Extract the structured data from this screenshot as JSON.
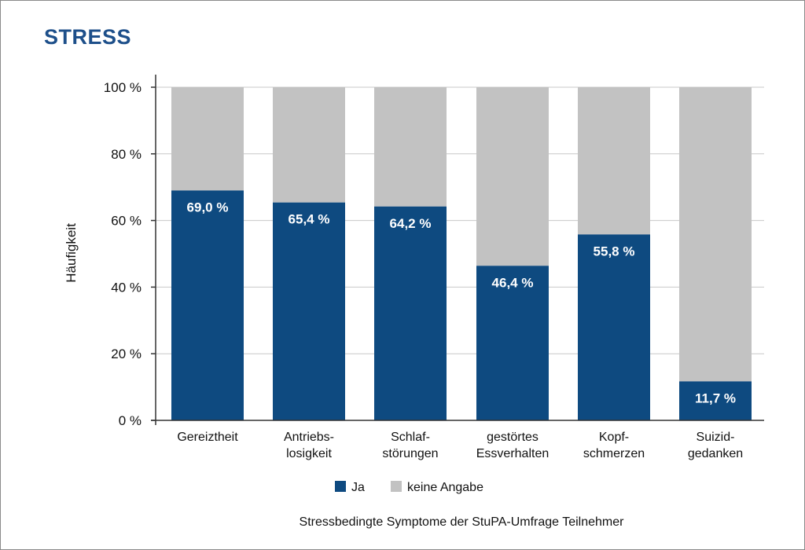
{
  "chart_data": {
    "type": "bar",
    "stacked": true,
    "title": "STRESS",
    "ylabel": "Häufigkeit",
    "ylim": [
      0,
      100
    ],
    "yticks": [
      0,
      20,
      40,
      60,
      80,
      100
    ],
    "ytick_labels": [
      "0 %",
      "20 %",
      "40 %",
      "60 %",
      "80 %",
      "100 %"
    ],
    "categories": [
      [
        "Gereiztheit"
      ],
      [
        "Antriebs-",
        "losigkeit"
      ],
      [
        "Schlaf-",
        "störungen"
      ],
      [
        "gestörtes",
        "Essverhalten"
      ],
      [
        "Kopf-",
        "schmerzen"
      ],
      [
        "Suizid-",
        "gedanken"
      ]
    ],
    "series": [
      {
        "name": "Ja",
        "values": [
          69.0,
          65.4,
          64.2,
          46.4,
          55.8,
          11.7
        ],
        "labels": [
          "69,0 %",
          "65,4 %",
          "64,2 %",
          "46,4 %",
          "55,8 %",
          "11,7 %"
        ]
      },
      {
        "name": "keine Angabe",
        "values": [
          31.0,
          34.6,
          35.8,
          53.6,
          44.2,
          88.3
        ]
      }
    ],
    "colors": {
      "Ja": "#0e4a80",
      "keine Angabe": "#c2c2c2",
      "grid": "#c8c8c8",
      "axis": "#333333"
    },
    "grid": true,
    "legend": "bottom",
    "caption": "Stressbedingte Symptome der StuPA-Umfrage Teilnehmer"
  }
}
